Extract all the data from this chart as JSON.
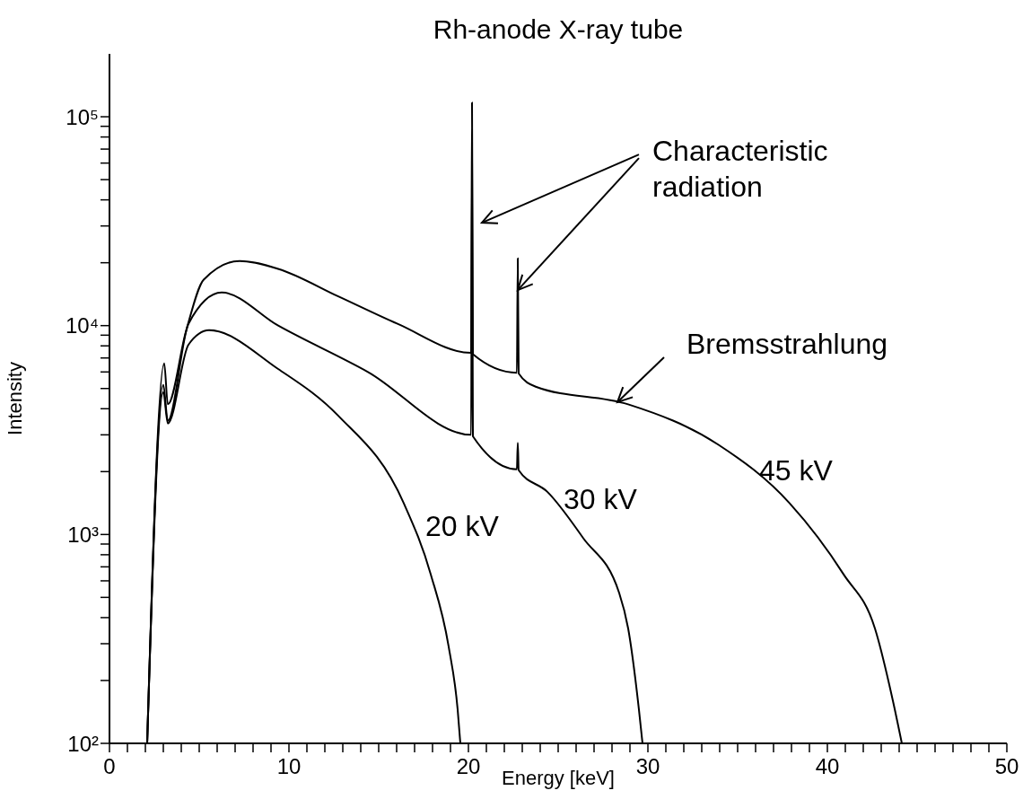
{
  "chart_data": {
    "type": "line",
    "title": "Rh-anode X-ray tube",
    "xlabel": "Energy [keV]",
    "ylabel": "Intensity",
    "annotations": [
      {
        "text": "Characteristic radiation",
        "x": 22.75,
        "y": 14800
      },
      {
        "text": "Bremsstrahlung",
        "x": 28.3,
        "y": 4300
      }
    ],
    "log": "y",
    "marker": "none",
    "line_style": "solid",
    "xlim": [
      0,
      50
    ],
    "ylim": [
      100,
      200000
    ],
    "xticks": [
      0,
      {
        "value": 1,
        "label": null
      },
      {
        "value": 2,
        "label": null
      },
      {
        "value": 3,
        "label": null
      },
      {
        "value": 4,
        "label": null
      },
      {
        "value": 5,
        "label": null
      },
      {
        "value": 6,
        "label": null
      },
      {
        "value": 7,
        "label": null
      },
      {
        "value": 8,
        "label": null
      },
      {
        "value": 9,
        "label": null
      },
      10,
      {
        "value": 11,
        "label": null
      },
      {
        "value": 12,
        "label": null
      },
      {
        "value": 13,
        "label": null
      },
      {
        "value": 14,
        "label": null
      },
      {
        "value": 15,
        "label": null
      },
      {
        "value": 16,
        "label": null
      },
      {
        "value": 17,
        "label": null
      },
      {
        "value": 18,
        "label": null
      },
      {
        "value": 19,
        "label": null
      },
      20,
      {
        "value": 21,
        "label": null
      },
      {
        "value": 22,
        "label": null
      },
      {
        "value": 23,
        "label": null
      },
      {
        "value": 24,
        "label": null
      },
      {
        "value": 25,
        "label": null
      },
      {
        "value": 26,
        "label": null
      },
      {
        "value": 27,
        "label": null
      },
      {
        "value": 28,
        "label": null
      },
      {
        "value": 29,
        "label": null
      },
      30,
      {
        "value": 31,
        "label": null
      },
      {
        "value": 32,
        "label": null
      },
      {
        "value": 33,
        "label": null
      },
      {
        "value": 34,
        "label": null
      },
      {
        "value": 35,
        "label": null
      },
      {
        "value": 36,
        "label": null
      },
      {
        "value": 37,
        "label": null
      },
      {
        "value": 38,
        "label": null
      },
      {
        "value": 39,
        "label": null
      },
      40,
      {
        "value": 41,
        "label": null
      },
      {
        "value": 42,
        "label": null
      },
      {
        "value": 43,
        "label": null
      },
      {
        "value": 44,
        "label": null
      },
      {
        "value": 45,
        "label": null
      },
      {
        "value": 46,
        "label": null
      },
      {
        "value": 47,
        "label": null
      },
      {
        "value": 48,
        "label": null
      },
      {
        "value": 49,
        "label": null
      },
      50
    ],
    "yticks": [
      {
        "value": 100,
        "label": "10²"
      },
      {
        "value": 200,
        "label": null
      },
      {
        "value": 300,
        "label": null
      },
      {
        "value": 400,
        "label": null
      },
      {
        "value": 500,
        "label": null
      },
      {
        "value": 600,
        "label": null
      },
      {
        "value": 700,
        "label": null
      },
      {
        "value": 800,
        "label": null
      },
      {
        "value": 900,
        "label": null
      },
      {
        "value": 1000,
        "label": "10³"
      },
      {
        "value": 2000,
        "label": null
      },
      {
        "value": 3000,
        "label": null
      },
      {
        "value": 4000,
        "label": null
      },
      {
        "value": 5000,
        "label": null
      },
      {
        "value": 6000,
        "label": null
      },
      {
        "value": 7000,
        "label": null
      },
      {
        "value": 8000,
        "label": null
      },
      {
        "value": 9000,
        "label": null
      },
      {
        "value": 10000,
        "label": "10⁴"
      },
      {
        "value": 20000,
        "label": null
      },
      {
        "value": 30000,
        "label": null
      },
      {
        "value": 40000,
        "label": null
      },
      {
        "value": 50000,
        "label": null
      },
      {
        "value": 60000,
        "label": null
      },
      {
        "value": 70000,
        "label": null
      },
      {
        "value": 80000,
        "label": null
      },
      {
        "value": 90000,
        "label": null
      },
      {
        "value": 100000,
        "label": "10⁵"
      }
    ],
    "series": [
      {
        "name": "20 kV",
        "color": "#000000",
        "x": [
          2.1,
          3.0,
          3.25,
          4.4,
          5.55,
          9.4,
          12.75,
          16.4,
          17.9,
          18.9,
          19.4,
          19.55
        ],
        "values": [
          100,
          4800,
          3400,
          8100,
          9500,
          6200,
          3700,
          1410,
          645,
          290,
          145,
          100
        ]
      },
      {
        "name": "30 kV",
        "color": "#000000",
        "x": [
          2.1,
          3.0,
          3.25,
          4.4,
          6.25,
          9.4,
          14.4,
          20.15,
          20.2,
          20.25,
          22.7,
          22.75,
          22.8,
          24.4,
          26.4,
          28.4,
          28.9,
          29.5,
          29.7
        ],
        "values": [
          100,
          5200,
          3500,
          10200,
          14400,
          10000,
          6000,
          3000,
          62000,
          2950,
          2050,
          2750,
          2030,
          1600,
          960,
          525,
          355,
          145,
          100
        ]
      },
      {
        "name": "45 kV",
        "color": "#000000",
        "x": [
          2.1,
          3.05,
          3.25,
          4.25,
          5.25,
          7.25,
          9.4,
          12.75,
          16.05,
          20.15,
          20.2,
          20.25,
          22.7,
          22.75,
          22.8,
          23.75,
          28.9,
          33.9,
          37.9,
          40.9,
          42.65,
          43.65,
          44.15
        ],
        "values": [
          100,
          6600,
          4200,
          9300,
          16600,
          20400,
          18700,
          13800,
          10200,
          7400,
          117000,
          7300,
          5950,
          21000,
          5900,
          5100,
          4200,
          2700,
          1410,
          645,
          355,
          160,
          100
        ]
      }
    ]
  }
}
